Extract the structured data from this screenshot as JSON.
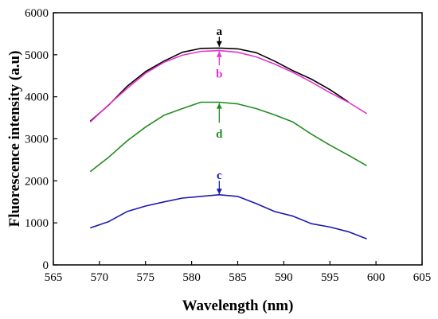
{
  "chart_data": {
    "type": "line",
    "xlabel": "Wavelength (nm)",
    "ylabel": "Fluorescence intensity (a.u)",
    "xlim": [
      565,
      605
    ],
    "ylim": [
      0,
      6000
    ],
    "xticks": [
      565,
      570,
      575,
      580,
      585,
      590,
      595,
      600,
      605
    ],
    "yticks": [
      0,
      1000,
      2000,
      3000,
      4000,
      5000,
      6000
    ],
    "grid": false,
    "series": [
      {
        "name": "a",
        "color": "#000000",
        "x": [
          569,
          571,
          573,
          575,
          577,
          579,
          581,
          583,
          585,
          587,
          589,
          591,
          593,
          595,
          597
        ],
        "y": [
          3420,
          3800,
          4250,
          4600,
          4850,
          5060,
          5150,
          5160,
          5140,
          5050,
          4850,
          4620,
          4420,
          4170,
          3880
        ]
      },
      {
        "name": "b",
        "color": "#e633cc",
        "x": [
          569,
          571,
          573,
          575,
          577,
          579,
          581,
          583,
          585,
          587,
          589,
          591,
          593,
          595,
          597,
          599
        ],
        "y": [
          3400,
          3810,
          4200,
          4560,
          4820,
          4990,
          5080,
          5100,
          5060,
          4950,
          4780,
          4580,
          4350,
          4100,
          3870,
          3600
        ]
      },
      {
        "name": "d",
        "color": "#228b22",
        "x": [
          569,
          571,
          573,
          575,
          577,
          579,
          581,
          583,
          585,
          587,
          589,
          591,
          593,
          595,
          597,
          599
        ],
        "y": [
          2220,
          2560,
          2950,
          3280,
          3560,
          3720,
          3870,
          3870,
          3830,
          3720,
          3570,
          3400,
          3110,
          2850,
          2610,
          2360
        ]
      },
      {
        "name": "c",
        "color": "#1a1ab0",
        "x": [
          569,
          571,
          573,
          575,
          577,
          579,
          581,
          583,
          585,
          587,
          589,
          591,
          593,
          595,
          597,
          599
        ],
        "y": [
          880,
          1030,
          1270,
          1400,
          1500,
          1590,
          1630,
          1670,
          1630,
          1460,
          1270,
          1160,
          980,
          900,
          790,
          620
        ]
      }
    ],
    "annotations": [
      {
        "label": "a",
        "color": "#000000",
        "at_x": 583,
        "label_y": 5560,
        "arrow_from": 5430,
        "arrow_to": 5190,
        "label_pos": "above"
      },
      {
        "label": "b",
        "color": "#e633cc",
        "at_x": 583,
        "label_y": 4550,
        "arrow_from": 4750,
        "arrow_to": 5080,
        "label_pos": "below"
      },
      {
        "label": "d",
        "color": "#228b22",
        "at_x": 583,
        "label_y": 3120,
        "arrow_from": 3380,
        "arrow_to": 3850,
        "label_pos": "below"
      },
      {
        "label": "c",
        "color": "#1a1ab0",
        "at_x": 583,
        "label_y": 2140,
        "arrow_from": 2000,
        "arrow_to": 1680,
        "label_pos": "above"
      }
    ]
  }
}
